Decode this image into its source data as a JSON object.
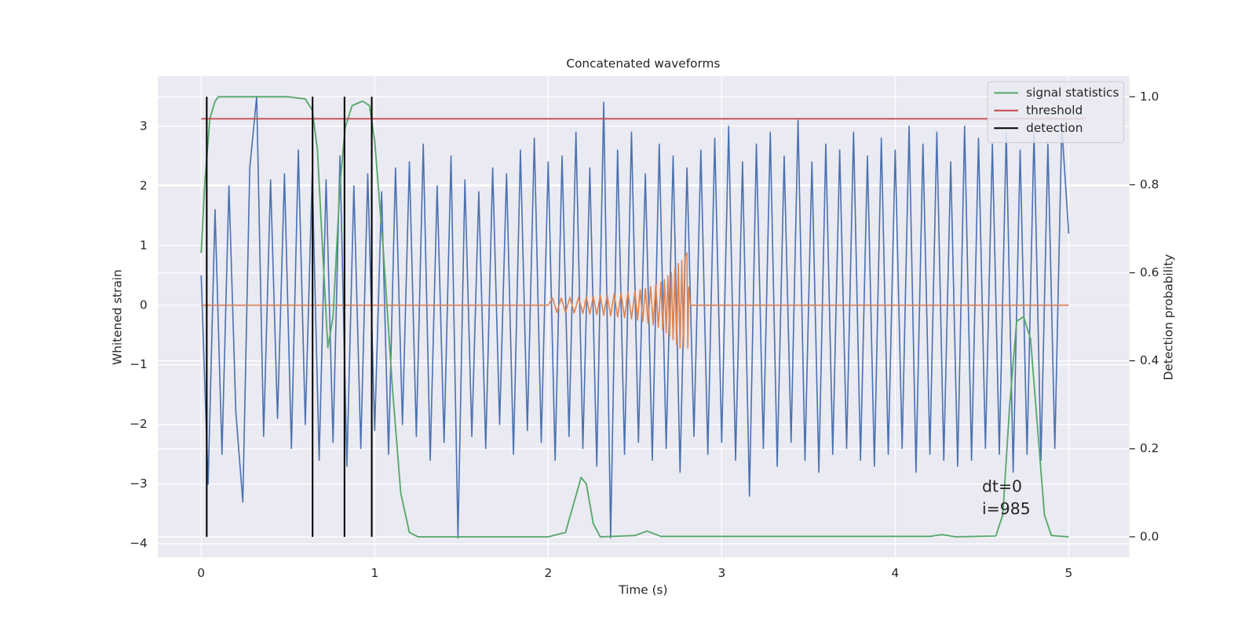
{
  "chart_data": {
    "type": "line",
    "title": "Concatenated waveforms",
    "xlabel": "Time (s)",
    "ylabel": "Whitened strain",
    "y2label": "Detection probability",
    "xlim": [
      -0.25,
      5.35
    ],
    "ylim": [
      -4.23,
      3.84
    ],
    "y2lim": [
      -0.047,
      1.047
    ],
    "xticks": [
      0,
      1,
      2,
      3,
      4,
      5
    ],
    "yticks": [
      {
        "value": -4,
        "label": "−4"
      },
      {
        "value": -3,
        "label": "−3"
      },
      {
        "value": -2,
        "label": "−2"
      },
      {
        "value": -1,
        "label": "−1"
      },
      0,
      1,
      2,
      3
    ],
    "y2ticks": [
      {
        "value": 0,
        "label": "0.0"
      },
      0.2,
      0.4,
      0.6,
      0.8,
      {
        "value": 1,
        "label": "1.0"
      }
    ],
    "grid": true,
    "legend": "upper right",
    "annotations": [
      "dt=0",
      "i=985"
    ],
    "series": [
      {
        "color": "#4c72b0",
        "x": [
          0,
          0.04,
          0.08,
          0.12,
          0.16,
          0.2,
          0.24,
          0.28,
          0.32,
          0.36,
          0.4,
          0.44,
          0.48,
          0.52,
          0.56,
          0.6,
          0.64,
          0.68,
          0.72,
          0.76,
          0.8,
          0.84,
          0.88,
          0.92,
          0.96,
          1.0,
          1.04,
          1.08,
          1.12,
          1.16,
          1.2,
          1.24,
          1.28,
          1.32,
          1.36,
          1.4,
          1.44,
          1.48,
          1.52,
          1.56,
          1.6,
          1.64,
          1.68,
          1.72,
          1.76,
          1.8,
          1.84,
          1.88,
          1.92,
          1.96,
          2.0,
          2.04,
          2.08,
          2.12,
          2.16,
          2.2,
          2.24,
          2.28,
          2.32,
          2.36,
          2.4,
          2.44,
          2.48,
          2.52,
          2.56,
          2.6,
          2.64,
          2.68,
          2.72,
          2.76,
          2.8,
          2.84,
          2.88,
          2.92,
          2.96,
          3.0,
          3.04,
          3.08,
          3.12,
          3.16,
          3.2,
          3.24,
          3.28,
          3.32,
          3.36,
          3.4,
          3.44,
          3.48,
          3.52,
          3.56,
          3.6,
          3.64,
          3.68,
          3.72,
          3.76,
          3.8,
          3.84,
          3.88,
          3.92,
          3.96,
          4.0,
          4.04,
          4.08,
          4.12,
          4.16,
          4.2,
          4.24,
          4.28,
          4.32,
          4.36,
          4.4,
          4.44,
          4.48,
          4.52,
          4.56,
          4.6,
          4.64,
          4.68,
          4.72,
          4.76,
          4.8,
          4.84,
          4.88,
          4.92,
          4.96,
          5.0
        ],
        "values": [
          0.5,
          -3.0,
          1.6,
          -2.5,
          2.0,
          -1.8,
          -3.3,
          2.3,
          3.5,
          -2.2,
          2.1,
          -1.9,
          2.2,
          -2.4,
          2.6,
          -2.0,
          2.2,
          -2.6,
          2.1,
          -2.3,
          2.5,
          -2.7,
          2.0,
          -2.4,
          2.2,
          -2.1,
          1.9,
          -2.5,
          2.3,
          -2.0,
          2.4,
          -2.2,
          2.7,
          -2.6,
          2.0,
          -2.3,
          2.5,
          -3.9,
          2.1,
          -2.2,
          1.9,
          -2.4,
          2.3,
          -2.0,
          2.2,
          -2.5,
          2.6,
          -2.1,
          2.8,
          -2.3,
          2.4,
          -2.6,
          2.5,
          -2.2,
          2.9,
          -2.4,
          2.3,
          -2.7,
          3.4,
          -3.9,
          2.6,
          -2.5,
          2.9,
          -2.3,
          2.2,
          -2.6,
          2.7,
          -2.4,
          2.5,
          -2.8,
          2.3,
          -2.2,
          2.6,
          -2.5,
          2.8,
          -2.3,
          3.0,
          -2.6,
          2.4,
          -3.2,
          2.7,
          -2.4,
          2.9,
          -2.7,
          2.5,
          -2.3,
          3.1,
          -2.6,
          2.4,
          -2.8,
          2.7,
          -2.5,
          2.6,
          -2.4,
          2.9,
          -2.6,
          2.5,
          -2.7,
          2.8,
          -2.5,
          2.6,
          -2.4,
          3.0,
          -2.8,
          2.7,
          -2.5,
          2.9,
          -2.6,
          2.4,
          -2.7,
          3.0,
          -2.6,
          2.8,
          -2.4,
          2.7,
          -2.5,
          2.9,
          -2.8,
          2.6,
          -2.5,
          2.9,
          -2.6,
          2.7,
          -2.4,
          3.0,
          1.2
        ]
      },
      {
        "color": "#dd8452",
        "x": [
          0,
          2.0,
          2.025,
          2.05,
          2.075,
          2.1,
          2.125,
          2.15,
          2.175,
          2.2,
          2.22,
          2.24,
          2.26,
          2.28,
          2.3,
          2.32,
          2.34,
          2.36,
          2.38,
          2.4,
          2.42,
          2.44,
          2.46,
          2.48,
          2.5,
          2.515,
          2.53,
          2.545,
          2.56,
          2.575,
          2.59,
          2.605,
          2.62,
          2.635,
          2.65,
          2.66,
          2.67,
          2.68,
          2.69,
          2.7,
          2.71,
          2.72,
          2.73,
          2.74,
          2.75,
          2.76,
          2.77,
          2.78,
          2.79,
          2.8,
          2.805,
          2.81,
          2.82,
          5.0
        ],
        "values": [
          0,
          0,
          0.12,
          -0.12,
          0.12,
          -0.12,
          0.13,
          -0.13,
          0.13,
          -0.14,
          0.14,
          -0.15,
          0.15,
          -0.16,
          0.16,
          -0.17,
          0.17,
          -0.18,
          0.19,
          -0.2,
          0.2,
          -0.21,
          0.22,
          -0.23,
          0.24,
          -0.25,
          0.26,
          -0.27,
          0.28,
          -0.3,
          0.31,
          -0.33,
          0.35,
          -0.37,
          0.39,
          -0.41,
          0.43,
          -0.46,
          0.49,
          -0.52,
          0.55,
          -0.58,
          0.62,
          -0.66,
          0.7,
          -0.72,
          0.75,
          -0.7,
          0.82,
          0.88,
          -0.72,
          0.3,
          0,
          0
        ]
      },
      {
        "name": "signal statistics",
        "color": "#55a868",
        "axis": "y2",
        "x": [
          0,
          0.02,
          0.05,
          0.08,
          0.1,
          0.5,
          0.6,
          0.64,
          0.67,
          0.7,
          0.73,
          0.76,
          0.8,
          0.83,
          0.87,
          0.93,
          0.97,
          1.0,
          1.05,
          1.1,
          1.15,
          1.2,
          1.25,
          2.0,
          2.1,
          2.15,
          2.19,
          2.22,
          2.26,
          2.3,
          2.5,
          2.57,
          2.65,
          4.2,
          4.27,
          4.35,
          4.58,
          4.62,
          4.66,
          4.7,
          4.74,
          4.78,
          4.82,
          4.86,
          4.9,
          5.0
        ],
        "values": [
          0.645,
          0.8,
          0.95,
          0.99,
          1.0,
          1.0,
          0.995,
          0.97,
          0.88,
          0.65,
          0.43,
          0.5,
          0.8,
          0.93,
          0.98,
          0.99,
          0.98,
          0.9,
          0.65,
          0.35,
          0.1,
          0.01,
          0.0,
          0.0,
          0.01,
          0.08,
          0.135,
          0.12,
          0.03,
          0.0,
          0.003,
          0.013,
          0.001,
          0.001,
          0.005,
          0.0,
          0.002,
          0.05,
          0.3,
          0.49,
          0.5,
          0.45,
          0.25,
          0.05,
          0.003,
          0.0
        ]
      },
      {
        "name": "threshold",
        "color": "#c44e52",
        "axis": "y2",
        "x": [
          0,
          5.1
        ],
        "values": [
          0.95,
          0.95
        ]
      },
      {
        "name": "detection",
        "color": "#000000",
        "axis": "y2",
        "style": "vlines",
        "x": [
          0.032,
          0.642,
          0.826,
          0.983
        ],
        "ymin": 0,
        "ymax": 1
      }
    ]
  }
}
